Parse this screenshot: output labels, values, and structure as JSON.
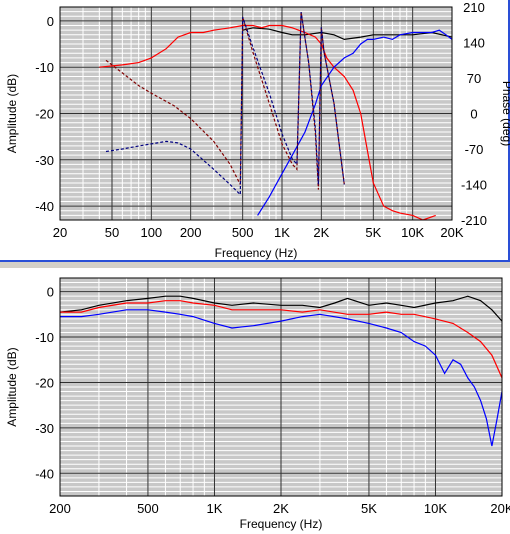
{
  "chart_data": [
    {
      "type": "line",
      "xlabel": "Frequency (Hz)",
      "ylabel": "Amplitude (dB)",
      "y2label": "Phase (deg)",
      "x_scale": "log",
      "xlim": [
        20,
        20000
      ],
      "ylim": [
        -43,
        3
      ],
      "y2lim": [
        -210,
        210
      ],
      "grid": true,
      "x_ticks": [
        "20",
        "50",
        "100",
        "200",
        "500",
        "1K",
        "2K",
        "5K",
        "10K",
        "20K"
      ],
      "x_tick_values": [
        20,
        50,
        100,
        200,
        500,
        1000,
        2000,
        5000,
        10000,
        20000
      ],
      "y_ticks": [
        "0",
        "-10",
        "-20",
        "-30",
        "-40"
      ],
      "y_tick_values": [
        0,
        -10,
        -20,
        -30,
        -40
      ],
      "y2_ticks": [
        "210",
        "140",
        "70",
        "0",
        "-70",
        "-140",
        "-210"
      ],
      "y2_tick_values": [
        210,
        140,
        70,
        0,
        -70,
        -140,
        -210
      ],
      "series": [
        {
          "color": "#000000",
          "axis": "amplitude",
          "x": [
            500,
            600,
            800,
            1000,
            1200,
            1500,
            2000,
            2500,
            3000,
            4000,
            5000,
            7000,
            10000,
            14000,
            20000
          ],
          "y": [
            -2.0,
            -1.5,
            -1.8,
            -2.5,
            -3.0,
            -3.0,
            -2.5,
            -3.0,
            -4.0,
            -3.5,
            -3.0,
            -3.0,
            -3.0,
            -2.5,
            -3.5
          ]
        },
        {
          "color": "#ff0000",
          "axis": "amplitude",
          "x": [
            40,
            60,
            80,
            100,
            130,
            160,
            200,
            250,
            300,
            400,
            500,
            600,
            700,
            800,
            1000,
            1200,
            1500,
            1800,
            2000,
            2200,
            2500,
            3000,
            3500,
            4000,
            4500,
            5000,
            6000,
            7000,
            8000,
            10000,
            12000,
            15000
          ],
          "y": [
            -10.0,
            -9.5,
            -9.0,
            -8.0,
            -6.0,
            -3.5,
            -2.5,
            -2.5,
            -2.0,
            -1.5,
            -1.0,
            -1.0,
            -1.5,
            -1.0,
            -1.0,
            -1.5,
            -2.5,
            -3.5,
            -5.0,
            -8.0,
            -10.0,
            -12.0,
            -15.0,
            -20.0,
            -28.0,
            -35.0,
            -40.0,
            -41.0,
            -41.5,
            -42.0,
            -43.0,
            -42.0
          ]
        },
        {
          "color": "#0000ff",
          "axis": "amplitude",
          "x": [
            650,
            800,
            1000,
            1200,
            1500,
            1800,
            2000,
            2500,
            3000,
            3500,
            4000,
            4500,
            5000,
            6000,
            7000,
            8000,
            10000,
            12000,
            14000,
            16000,
            18000,
            20000
          ],
          "y": [
            -42.0,
            -38.0,
            -33.0,
            -29.0,
            -24.0,
            -18.0,
            -14.0,
            -10.0,
            -8.0,
            -7.0,
            -5.0,
            -4.0,
            -4.0,
            -3.5,
            -4.0,
            -3.0,
            -2.5,
            -2.5,
            -2.5,
            -2.0,
            -3.0,
            -4.0
          ]
        },
        {
          "color": "#800000",
          "axis": "phase",
          "dashed": true,
          "x": [
            45,
            60,
            80,
            100,
            150,
            200,
            300,
            400,
            480,
            500,
            600,
            800,
            1000,
            1200,
            1300,
            1400,
            1600,
            1800,
            1900,
            2000,
            2100,
            2500,
            3000
          ],
          "y": [
            105,
            80,
            55,
            40,
            15,
            -10,
            -55,
            -100,
            -140,
            190,
            120,
            20,
            -60,
            -100,
            -110,
            200,
            100,
            -40,
            -150,
            170,
            120,
            20,
            -140
          ]
        },
        {
          "color": "#000080",
          "axis": "phase",
          "dashed": true,
          "x": [
            45,
            60,
            80,
            100,
            130,
            160,
            200,
            300,
            400,
            480,
            500,
            600,
            800,
            1000,
            1200,
            1300,
            1400,
            1600,
            1800,
            1900,
            2000,
            2100,
            2500,
            3000
          ],
          "y": [
            -75,
            -70,
            -64,
            -60,
            -55,
            -58,
            -70,
            -110,
            -140,
            -160,
            190,
            130,
            40,
            -40,
            -90,
            -100,
            200,
            100,
            -30,
            -140,
            170,
            120,
            20,
            -140
          ]
        }
      ]
    },
    {
      "type": "line",
      "xlabel": "Frequency (Hz)",
      "ylabel": "Amplitude (dB)",
      "x_scale": "log",
      "xlim": [
        200,
        20000
      ],
      "ylim": [
        -45,
        3
      ],
      "grid": true,
      "x_ticks": [
        "200",
        "500",
        "1K",
        "2K",
        "5K",
        "10K",
        "20K"
      ],
      "x_tick_values": [
        200,
        500,
        1000,
        2000,
        5000,
        10000,
        20000
      ],
      "y_ticks": [
        "0",
        "-10",
        "-20",
        "-30",
        "-40"
      ],
      "y_tick_values": [
        0,
        -10,
        -20,
        -30,
        -40
      ],
      "series": [
        {
          "color": "#000000",
          "x": [
            200,
            250,
            300,
            400,
            500,
            600,
            700,
            800,
            1000,
            1200,
            1500,
            2000,
            2500,
            3000,
            3500,
            4000,
            5000,
            6000,
            7000,
            8000,
            10000,
            12000,
            14000,
            16000,
            18000,
            20000
          ],
          "y": [
            -4.5,
            -4.0,
            -3.0,
            -2.0,
            -1.5,
            -1.0,
            -1.0,
            -1.5,
            -2.5,
            -3.0,
            -2.5,
            -3.0,
            -3.0,
            -3.5,
            -2.5,
            -1.5,
            -3.0,
            -2.5,
            -3.0,
            -3.5,
            -2.5,
            -2.0,
            -1.0,
            -2.0,
            -4.0,
            -6.5
          ]
        },
        {
          "color": "#ff0000",
          "x": [
            200,
            250,
            300,
            400,
            500,
            600,
            700,
            800,
            1000,
            1200,
            1500,
            2000,
            2500,
            3000,
            4000,
            5000,
            6000,
            7000,
            8000,
            10000,
            12000,
            14000,
            16000,
            18000,
            20000
          ],
          "y": [
            -4.5,
            -4.5,
            -3.5,
            -2.5,
            -2.5,
            -2.0,
            -2.0,
            -2.5,
            -3.0,
            -4.0,
            -4.0,
            -4.0,
            -4.5,
            -4.0,
            -5.0,
            -5.0,
            -4.5,
            -5.0,
            -5.0,
            -6.0,
            -7.0,
            -9.0,
            -11.0,
            -14.0,
            -19.0
          ]
        },
        {
          "color": "#0000ff",
          "x": [
            200,
            250,
            300,
            400,
            500,
            600,
            700,
            800,
            1000,
            1200,
            1500,
            2000,
            2500,
            3000,
            4000,
            5000,
            6000,
            7000,
            8000,
            9000,
            10000,
            11000,
            12000,
            13000,
            14000,
            15000,
            16000,
            17000,
            18000,
            19000,
            20000
          ],
          "y": [
            -5.5,
            -5.5,
            -5.0,
            -4.0,
            -4.0,
            -4.5,
            -5.0,
            -5.5,
            -7.0,
            -8.0,
            -7.5,
            -6.5,
            -5.5,
            -5.0,
            -6.0,
            -7.0,
            -8.0,
            -9.0,
            -11.0,
            -12.0,
            -14.0,
            -18.0,
            -15.0,
            -16.0,
            -19.0,
            -21.0,
            -24.0,
            -28.0,
            -34.0,
            -28.0,
            -22.0
          ]
        }
      ]
    }
  ]
}
